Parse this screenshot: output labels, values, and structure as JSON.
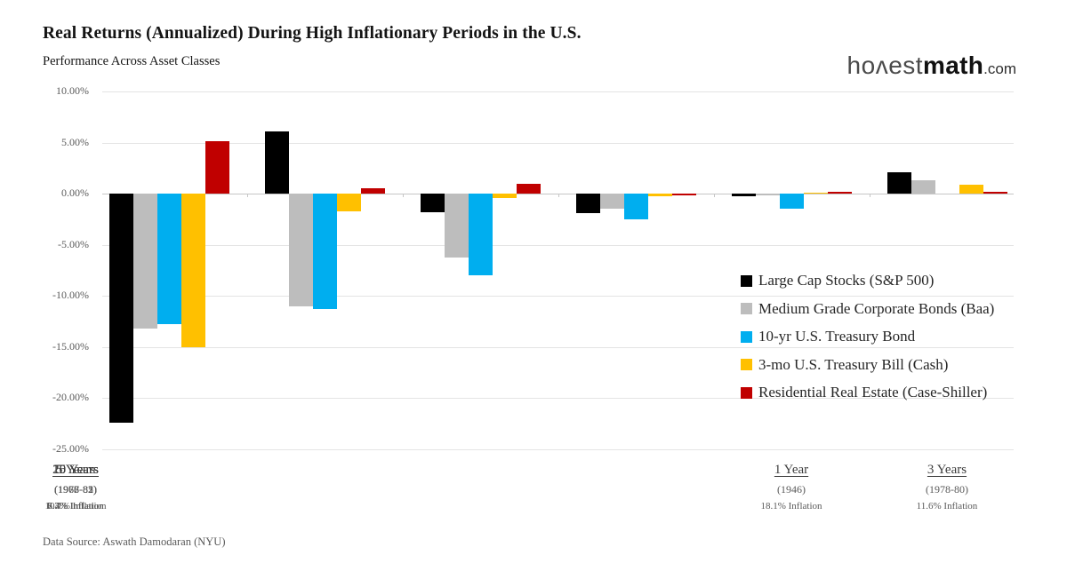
{
  "header": {
    "title": "Real Returns (Annualized) During High Inflationary Periods in the U.S.",
    "subtitle": "Performance Across Asset Classes",
    "logo": {
      "honest": "hoʌest",
      "math": "math",
      "com": ".com"
    }
  },
  "chart_data": {
    "type": "bar",
    "title": "Real Returns (Annualized) During High Inflationary Periods in the U.S.",
    "subtitle": "Performance Across Asset Classes",
    "xlabel": "",
    "ylabel": "",
    "ylim": [
      -25,
      10
    ],
    "grid": true,
    "legend_position": "middle-right",
    "y_axis": {
      "ticks": [
        "10.00%",
        "5.00%",
        "0.00%",
        "-5.00%",
        "-10.00%",
        "-15.00%",
        "-20.00%",
        "-25.00%"
      ],
      "min": -25,
      "max": 10,
      "step": 5,
      "unit": "%"
    },
    "categories": [
      {
        "label": "1 Year",
        "years": "(1946)",
        "inflation": "18.1% Inflation"
      },
      {
        "label": "3 Years",
        "years": "(1978-80)",
        "inflation": "11.6% Inflation"
      },
      {
        "label": "5 Years",
        "years": "(1977-81)",
        "inflation": "10.1% Inflation"
      },
      {
        "label": "10 Years",
        "years": "(1973-82)",
        "inflation": "8.7% Inflation"
      },
      {
        "label": "15 Years",
        "years": "(1968-82)",
        "inflation": "7.3% Inflation"
      },
      {
        "label": "20 Years",
        "years": "(1966-85)",
        "inflation": "6.4% Inflation"
      }
    ],
    "series": [
      {
        "name": "Large Cap Stocks (S&P 500)",
        "color": "#000000",
        "values": [
          -22.4,
          6.1,
          -1.8,
          -1.9,
          -0.3,
          2.1
        ]
      },
      {
        "name": "Medium Grade Corporate Bonds (Baa)",
        "color": "#BDBDBD",
        "values": [
          -13.2,
          -11.0,
          -6.3,
          -1.5,
          -0.2,
          1.3
        ]
      },
      {
        "name": "10-yr U.S. Treasury Bond",
        "color": "#00AEEF",
        "values": [
          -12.8,
          -11.3,
          -8.0,
          -2.5,
          -1.5,
          0.0
        ]
      },
      {
        "name": "3-mo U.S. Treasury Bill (Cash)",
        "color": "#FFC000",
        "values": [
          -15.0,
          -1.7,
          -0.4,
          -0.3,
          0.1,
          0.9
        ]
      },
      {
        "name": "Residential Real Estate (Case-Shiller)",
        "color": "#C00000",
        "values": [
          5.1,
          0.5,
          1.0,
          -0.2,
          0.2,
          0.2
        ]
      }
    ]
  },
  "footer": {
    "source": "Data Source: Aswath Damodaran (NYU)"
  }
}
